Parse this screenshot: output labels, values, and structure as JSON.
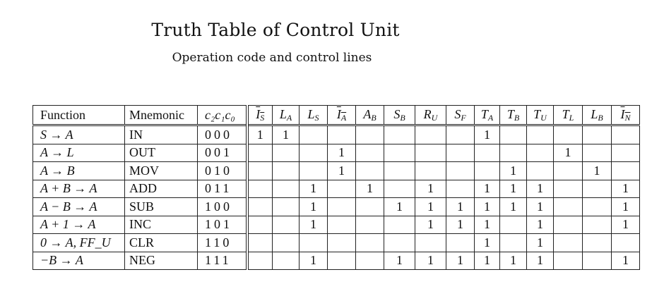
{
  "title": "Truth Table of Control Unit",
  "subtitle": "Operation code and control lines",
  "table": {
    "headers": {
      "function": "Function",
      "mnemonic": "Mnemonic",
      "code": "c₂c₁c₀",
      "controls": [
        {
          "sym": "I",
          "sub": "S",
          "overline": true
        },
        {
          "sym": "L",
          "sub": "A",
          "overline": false
        },
        {
          "sym": "L",
          "sub": "S",
          "overline": false
        },
        {
          "sym": "I",
          "sub": "A",
          "overline": true
        },
        {
          "sym": "A",
          "sub": "B",
          "overline": false
        },
        {
          "sym": "S",
          "sub": "B",
          "overline": false
        },
        {
          "sym": "R",
          "sub": "U",
          "overline": false
        },
        {
          "sym": "S",
          "sub": "F",
          "overline": false
        },
        {
          "sym": "T",
          "sub": "A",
          "overline": false
        },
        {
          "sym": "T",
          "sub": "B",
          "overline": false
        },
        {
          "sym": "T",
          "sub": "U",
          "overline": false
        },
        {
          "sym": "T",
          "sub": "L",
          "overline": false
        },
        {
          "sym": "L",
          "sub": "B",
          "overline": false
        },
        {
          "sym": "I",
          "sub": "N",
          "overline": true
        }
      ]
    },
    "rows": [
      {
        "function": "S → A",
        "mnemonic": "IN",
        "code": "000",
        "cells": [
          "1",
          "1",
          "",
          "",
          "",
          "",
          "",
          "",
          "1",
          "",
          "",
          "",
          "",
          ""
        ]
      },
      {
        "function": "A → L",
        "mnemonic": "OUT",
        "code": "001",
        "cells": [
          "",
          "",
          "",
          "1",
          "",
          "",
          "",
          "",
          "",
          "",
          "",
          "1",
          "",
          ""
        ]
      },
      {
        "function": "A → B",
        "mnemonic": "MOV",
        "code": "010",
        "cells": [
          "",
          "",
          "",
          "1",
          "",
          "",
          "",
          "",
          "",
          "1",
          "",
          "",
          "1",
          ""
        ]
      },
      {
        "function": "A + B → A",
        "mnemonic": "ADD",
        "code": "011",
        "cells": [
          "",
          "",
          "1",
          "",
          "1",
          "",
          "1",
          "",
          "1",
          "1",
          "1",
          "",
          "",
          "1"
        ]
      },
      {
        "function": "A − B → A",
        "mnemonic": "SUB",
        "code": "100",
        "cells": [
          "",
          "",
          "1",
          "",
          "",
          "1",
          "1",
          "1",
          "1",
          "1",
          "1",
          "",
          "",
          "1"
        ]
      },
      {
        "function": "A + 1 → A",
        "mnemonic": "INC",
        "code": "101",
        "cells": [
          "",
          "",
          "1",
          "",
          "",
          "",
          "1",
          "1",
          "1",
          "",
          "1",
          "",
          "",
          "1"
        ]
      },
      {
        "function": "0 → A, FF_U",
        "mnemonic": "CLR",
        "code": "110",
        "cells": [
          "",
          "",
          "",
          "",
          "",
          "",
          "",
          "",
          "1",
          "",
          "1",
          "",
          "",
          ""
        ]
      },
      {
        "function": "−B → A",
        "mnemonic": "NEG",
        "code": "111",
        "cells": [
          "",
          "",
          "1",
          "",
          "",
          "1",
          "1",
          "1",
          "1",
          "1",
          "1",
          "",
          "",
          "1"
        ]
      }
    ]
  }
}
